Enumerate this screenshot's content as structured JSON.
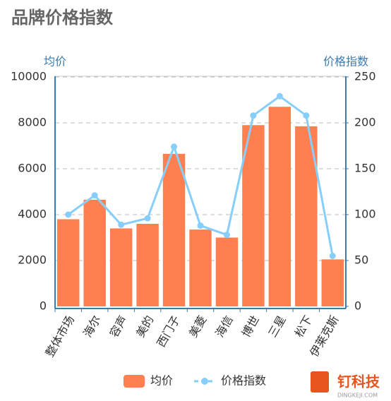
{
  "chart_data": {
    "type": "bar",
    "title": "品牌价格指数",
    "y_label": "均价",
    "y2_label": "价格指数",
    "categories": [
      "整体市场",
      "海尔",
      "容声",
      "美的",
      "西门子",
      "美菱",
      "海信",
      "博世",
      "三星",
      "松下",
      "伊莱克斯"
    ],
    "series": [
      {
        "name": "均价",
        "type": "bar",
        "color": "#ff7f50",
        "values": [
          3800,
          4650,
          3400,
          3600,
          6650,
          3350,
          3000,
          7900,
          8700,
          7850,
          2050
        ]
      },
      {
        "name": "价格指数",
        "type": "line",
        "axis": "y2",
        "color": "#87cefa",
        "values": [
          100,
          121,
          89,
          96,
          174,
          88,
          78,
          208,
          229,
          208,
          55
        ]
      }
    ],
    "ylim": [
      0,
      10000
    ],
    "yticks": [
      0,
      2000,
      4000,
      6000,
      8000,
      10000
    ],
    "y2lim": [
      0,
      250
    ],
    "y2ticks": [
      0,
      50,
      100,
      150,
      200,
      250
    ],
    "grid": true,
    "legend": "bottom",
    "watermark": {
      "brand": "钉科技",
      "site": "DINGKEJI.COM"
    }
  }
}
